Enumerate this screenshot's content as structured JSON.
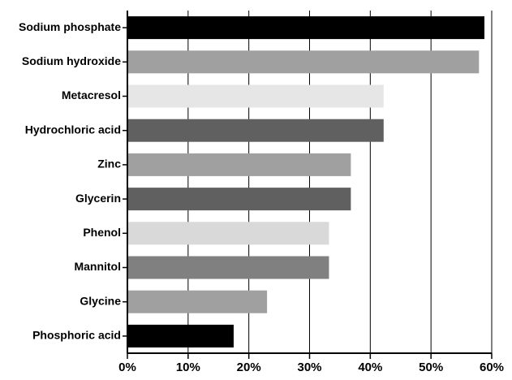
{
  "chart_data": {
    "type": "bar",
    "orientation": "horizontal",
    "categories": [
      "Sodium phosphate",
      "Sodium hydroxide",
      "Metacresol",
      "Hydrochloric acid",
      "Zinc",
      "Glycerin",
      "Phenol",
      "Mannitol",
      "Glycine",
      "Phosphoric acid"
    ],
    "values": [
      58.8,
      57.9,
      42.2,
      42.2,
      36.8,
      36.8,
      33.2,
      33.2,
      23,
      17.5
    ],
    "colors": [
      "#000000",
      "#a0a0a0",
      "#e6e6e6",
      "#606060",
      "#a0a0a0",
      "#606060",
      "#d9d9d9",
      "#808080",
      "#a0a0a0",
      "#000000"
    ],
    "xlim": [
      0,
      60
    ],
    "xticks": [
      {
        "value": 0,
        "label": "0%"
      },
      {
        "value": 10,
        "label": "10%"
      },
      {
        "value": 20,
        "label": "20%"
      },
      {
        "value": 30,
        "label": "30%"
      },
      {
        "value": 40,
        "label": "40%"
      },
      {
        "value": 50,
        "label": "50%"
      },
      {
        "value": 60,
        "label": "60%"
      }
    ],
    "grid": true
  }
}
